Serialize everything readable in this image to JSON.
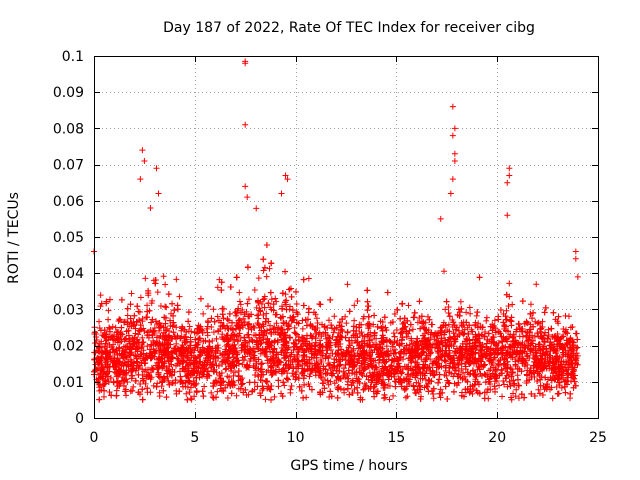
{
  "chart_data": {
    "type": "scatter",
    "title": "Day 187 of 2022, Rate Of TEC Index for receiver cibg",
    "xlabel": "GPS time / hours",
    "ylabel": "ROTI / TECUs",
    "xlim": [
      0,
      25
    ],
    "ylim": [
      0,
      0.1
    ],
    "x_ticks": [
      "0",
      "5",
      "10",
      "15",
      "20",
      "25"
    ],
    "y_ticks": [
      "0",
      "0.01",
      "0.02",
      "0.03",
      "0.04",
      "0.05",
      "0.06",
      "0.07",
      "0.08",
      "0.09",
      "0.1"
    ],
    "x_tick_values": [
      0,
      5,
      10,
      15,
      20,
      25
    ],
    "y_tick_values": [
      0,
      0.01,
      0.02,
      0.03,
      0.04,
      0.05,
      0.06,
      0.07,
      0.08,
      0.09,
      0.1
    ],
    "grid": true,
    "marker": "+",
    "color": "#ff0000",
    "x_data_range": [
      0,
      24
    ],
    "bulk_range": [
      0.008,
      0.03
    ],
    "series": [
      {
        "name": "ROTI",
        "notable_points": [
          {
            "x": 0.0,
            "y": 0.046
          },
          {
            "x": 2.4,
            "y": 0.074
          },
          {
            "x": 2.5,
            "y": 0.071
          },
          {
            "x": 2.3,
            "y": 0.066
          },
          {
            "x": 3.1,
            "y": 0.069
          },
          {
            "x": 3.2,
            "y": 0.062
          },
          {
            "x": 2.8,
            "y": 0.058
          },
          {
            "x": 7.5,
            "y": 0.0985
          },
          {
            "x": 7.5,
            "y": 0.098
          },
          {
            "x": 7.5,
            "y": 0.081
          },
          {
            "x": 7.5,
            "y": 0.064
          },
          {
            "x": 7.6,
            "y": 0.061
          },
          {
            "x": 9.5,
            "y": 0.067
          },
          {
            "x": 9.6,
            "y": 0.066
          },
          {
            "x": 9.3,
            "y": 0.062
          },
          {
            "x": 17.8,
            "y": 0.086
          },
          {
            "x": 17.9,
            "y": 0.08
          },
          {
            "x": 17.8,
            "y": 0.078
          },
          {
            "x": 17.9,
            "y": 0.073
          },
          {
            "x": 17.9,
            "y": 0.071
          },
          {
            "x": 17.8,
            "y": 0.066
          },
          {
            "x": 17.7,
            "y": 0.062
          },
          {
            "x": 17.2,
            "y": 0.055
          },
          {
            "x": 20.6,
            "y": 0.069
          },
          {
            "x": 20.6,
            "y": 0.067
          },
          {
            "x": 20.5,
            "y": 0.065
          },
          {
            "x": 20.5,
            "y": 0.056
          },
          {
            "x": 23.9,
            "y": 0.046
          },
          {
            "x": 23.9,
            "y": 0.044
          },
          {
            "x": 24.0,
            "y": 0.039
          }
        ]
      }
    ]
  },
  "colors": {
    "marker": "#ff0000",
    "grid": "#a0a0a0",
    "axis": "#000000",
    "background": "#ffffff"
  }
}
